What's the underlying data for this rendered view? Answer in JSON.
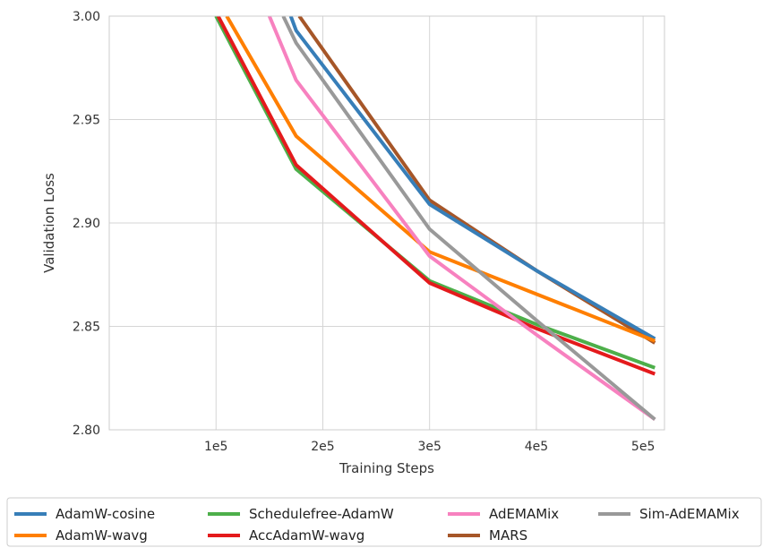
{
  "chart_data": {
    "type": "line",
    "title": "",
    "xlabel": "Training Steps",
    "ylabel": "Validation Loss",
    "xlim": [
      0,
      520000
    ],
    "ylim": [
      2.8,
      3.0
    ],
    "x_ticks": [
      100000,
      200000,
      300000,
      400000,
      500000
    ],
    "x_tick_labels": [
      "1e5",
      "2e5",
      "3e5",
      "4e5",
      "5e5"
    ],
    "y_ticks": [
      2.8,
      2.85,
      2.9,
      2.95,
      3.0
    ],
    "y_tick_labels": [
      "2.80",
      "2.85",
      "2.90",
      "2.95",
      "3.00"
    ],
    "grid": true,
    "legend_position": "bottom",
    "series": [
      {
        "name": "AdamW-cosine",
        "color": "#377eb8",
        "x": [
          170000,
          175000,
          300000,
          400000,
          511000
        ],
        "y": [
          3.0,
          2.993,
          2.909,
          2.877,
          2.844
        ]
      },
      {
        "name": "AdamW-wavg",
        "color": "#ff7f00",
        "x": [
          110000,
          175000,
          300000,
          511000
        ],
        "y": [
          3.0,
          2.942,
          2.886,
          2.843
        ]
      },
      {
        "name": "Schedulefree-AdamW",
        "color": "#4daf4a",
        "x": [
          100000,
          175000,
          300000,
          400000,
          511000
        ],
        "y": [
          3.0,
          2.926,
          2.872,
          2.851,
          2.83
        ]
      },
      {
        "name": "AccAdamW-wavg",
        "color": "#e41a1c",
        "x": [
          102000,
          175000,
          300000,
          400000,
          511000
        ],
        "y": [
          3.0,
          2.928,
          2.871,
          2.849,
          2.827
        ]
      },
      {
        "name": "AdEMAMix",
        "color": "#f781bf",
        "x": [
          150000,
          175000,
          300000,
          400000,
          511000
        ],
        "y": [
          3.0,
          2.969,
          2.884,
          2.846,
          2.805
        ]
      },
      {
        "name": "MARS",
        "color": "#a65628",
        "x": [
          178000,
          300000,
          400000,
          511000
        ],
        "y": [
          3.0,
          2.911,
          2.877,
          2.842
        ]
      },
      {
        "name": "Sim-AdEMAMix",
        "color": "#999999",
        "x": [
          163000,
          175000,
          300000,
          400000,
          511000
        ],
        "y": [
          3.0,
          2.987,
          2.897,
          2.853,
          2.805
        ]
      }
    ]
  }
}
